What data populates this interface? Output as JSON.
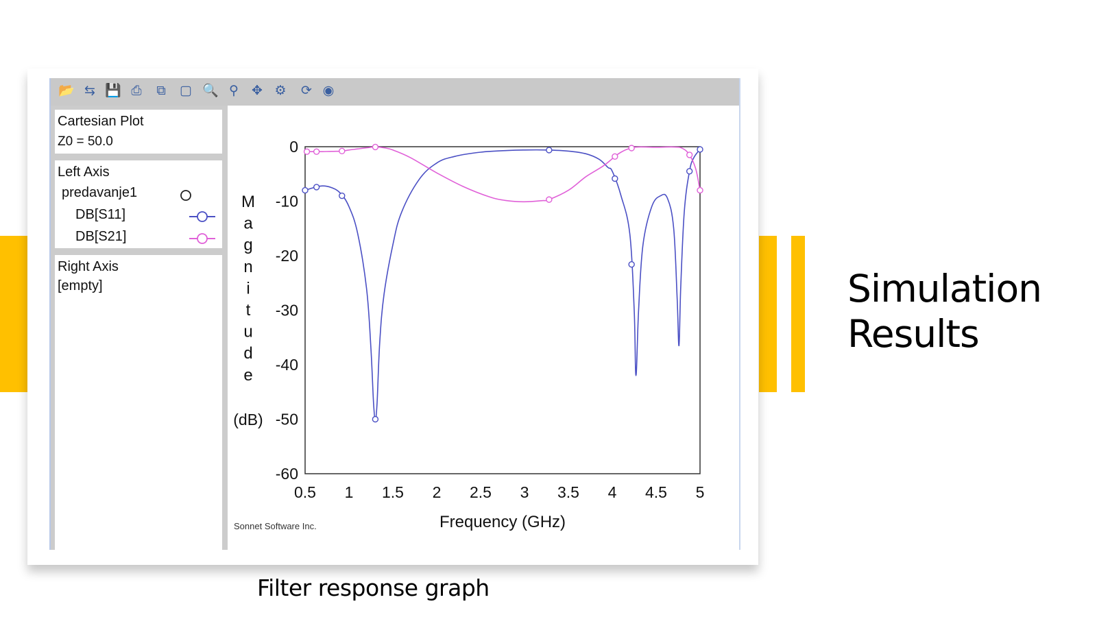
{
  "slide": {
    "title_line1": "Simulation",
    "title_line2": "Results",
    "caption": "Filter response graph",
    "accent_color": "#FFC000"
  },
  "toolbar": {
    "buttons": [
      {
        "name": "open-folder-icon",
        "glyph": "📂"
      },
      {
        "name": "import-icon",
        "glyph": "⇆"
      },
      {
        "name": "save-icon",
        "glyph": "💾"
      },
      {
        "name": "print-icon",
        "glyph": "⎙"
      },
      {
        "name": "copy-icon",
        "glyph": "⧉"
      },
      {
        "name": "new-plot-icon",
        "glyph": "▢"
      },
      {
        "name": "zoom-in-icon",
        "glyph": "🔍"
      },
      {
        "name": "zoom-icon",
        "glyph": "⚲"
      },
      {
        "name": "pan-icon",
        "glyph": "✥"
      },
      {
        "name": "settings-icon",
        "glyph": "⚙"
      },
      {
        "name": "refresh-icon",
        "glyph": "⟳"
      },
      {
        "name": "stop-icon",
        "glyph": "◉"
      }
    ]
  },
  "side_panel": {
    "plot_type": "Cartesian Plot",
    "z0": "Z0 = 50.0",
    "left_axis_label": "Left Axis",
    "project_name": "predavanje1",
    "trace1_label": "DB[S11]",
    "trace2_label": "DB[S21]",
    "right_axis_label": "Right Axis",
    "right_axis_value": "[empty]"
  },
  "plot": {
    "footer": "Sonnet Software Inc."
  },
  "chart_data": {
    "type": "line",
    "xlabel": "Frequency (GHz)",
    "ylabel": "Magnitude",
    "ylabel_unit": "(dB)",
    "xlim": [
      0.5,
      5
    ],
    "ylim": [
      -60,
      0
    ],
    "xticks": [
      0.5,
      1,
      1.5,
      2,
      2.5,
      3,
      3.5,
      4,
      4.5,
      5
    ],
    "yticks": [
      0,
      -10,
      -20,
      -30,
      -40,
      -50,
      -60
    ],
    "grid": false,
    "series": [
      {
        "name": "DB[S11]",
        "color": "#4a4fc4",
        "x": [
          0.5,
          0.6,
          0.7,
          0.8,
          0.9,
          1.0,
          1.1,
          1.2,
          1.25,
          1.28,
          1.3,
          1.32,
          1.35,
          1.4,
          1.5,
          1.6,
          1.8,
          2.0,
          2.2,
          2.5,
          2.8,
          3.0,
          3.25,
          3.5,
          3.7,
          3.85,
          3.95,
          4.0,
          4.1,
          4.2,
          4.25,
          4.27,
          4.3,
          4.35,
          4.45,
          4.55,
          4.63,
          4.7,
          4.74,
          4.76,
          4.78,
          4.82,
          4.88,
          4.93,
          5.0
        ],
        "y": [
          -8,
          -7.5,
          -7.2,
          -7.5,
          -8.5,
          -11,
          -16,
          -26,
          -37,
          -47,
          -50,
          -47,
          -36,
          -27,
          -18,
          -12,
          -6,
          -3,
          -1.8,
          -1,
          -0.7,
          -0.6,
          -0.6,
          -0.8,
          -1.3,
          -2.3,
          -3.8,
          -4.5,
          -9,
          -16,
          -30,
          -42,
          -30,
          -18,
          -11,
          -9,
          -9.5,
          -15,
          -28,
          -36.5,
          -26,
          -12,
          -4.5,
          -2,
          -0.5
        ]
      },
      {
        "name": "DB[S21]",
        "color": "#e060d8",
        "x": [
          0.5,
          0.6,
          0.7,
          0.8,
          0.92,
          1.0,
          1.1,
          1.2,
          1.3,
          1.4,
          1.5,
          1.7,
          2.0,
          2.3,
          2.6,
          2.8,
          3.0,
          3.2,
          3.28,
          3.5,
          3.7,
          3.9,
          4.03,
          4.1,
          4.2,
          4.3,
          4.5,
          4.7,
          4.8,
          4.88,
          4.95,
          5.0
        ],
        "y": [
          -0.9,
          -0.9,
          -0.9,
          -0.85,
          -0.8,
          -0.6,
          -0.4,
          -0.2,
          -0.05,
          -0.2,
          -0.6,
          -2,
          -4.8,
          -7.3,
          -9.2,
          -9.9,
          -10.1,
          -9.9,
          -9.7,
          -8,
          -5.5,
          -3.5,
          -1.8,
          -1,
          -0.3,
          -0.05,
          -0.1,
          -0.05,
          -0.3,
          -1.5,
          -4,
          -8
        ]
      }
    ],
    "markers": [
      {
        "series": "DB[S11]",
        "x": [
          0.5,
          0.63,
          0.92,
          1.3,
          3.28,
          4.03,
          4.22,
          4.88,
          5.0
        ]
      },
      {
        "series": "DB[S21]",
        "x": [
          0.52,
          0.63,
          0.92,
          1.3,
          3.28,
          4.03,
          4.22,
          4.88,
          5.0
        ]
      }
    ]
  }
}
